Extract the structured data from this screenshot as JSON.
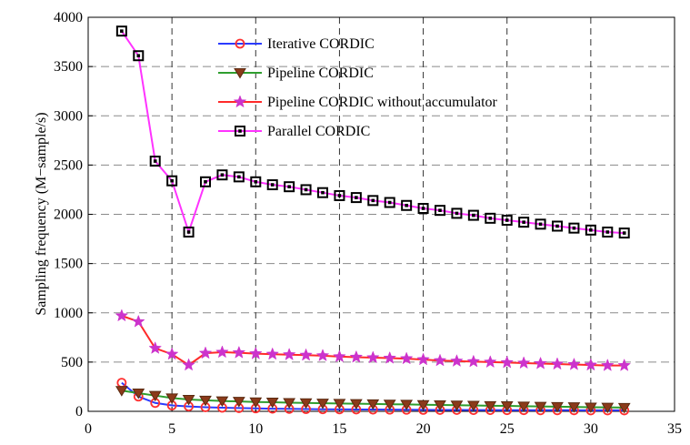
{
  "chart_data": {
    "type": "line",
    "title": "",
    "xlabel": "",
    "ylabel": "Sampling frequency (M−sample/s)",
    "xlim": [
      0,
      35
    ],
    "ylim": [
      0,
      4000
    ],
    "xticks": [
      "0",
      "5",
      "10",
      "15",
      "20",
      "25",
      "30",
      "35"
    ],
    "yticks": [
      "0",
      "500",
      "1000",
      "1500",
      "2000",
      "2500",
      "3000",
      "3500",
      "4000"
    ],
    "grid": "dashed",
    "legend_position": "top-center",
    "x": [
      2,
      3,
      4,
      5,
      6,
      7,
      8,
      9,
      10,
      11,
      12,
      13,
      14,
      15,
      16,
      17,
      18,
      19,
      20,
      21,
      22,
      23,
      24,
      25,
      26,
      27,
      28,
      29,
      30,
      31,
      32
    ],
    "series": [
      {
        "name": "Iterative CORDIC",
        "color": "#2b3bff",
        "marker_color": "#ff3030",
        "marker": "circle",
        "values": [
          290,
          150,
          85,
          60,
          50,
          42,
          37,
          33,
          30,
          27,
          25,
          23,
          21,
          20,
          19,
          18,
          17,
          16,
          15,
          14,
          14,
          13,
          13,
          12,
          12,
          11,
          11,
          11,
          10,
          10,
          10
        ]
      },
      {
        "name": "Pipeline CORDIC",
        "color": "#2e9e2e",
        "marker_color": "#8b3a1a",
        "marker": "triangle-down",
        "values": [
          210,
          185,
          160,
          135,
          120,
          112,
          105,
          100,
          95,
          92,
          88,
          85,
          82,
          80,
          77,
          75,
          72,
          70,
          67,
          65,
          62,
          60,
          57,
          55,
          52,
          50,
          47,
          45,
          42,
          40,
          38
        ]
      },
      {
        "name": "Pipeline CORDIC without accumulator",
        "color": "#ff2a2a",
        "marker_color": "#cc33cc",
        "marker": "star",
        "values": [
          970,
          910,
          640,
          580,
          470,
          590,
          600,
          595,
          585,
          580,
          575,
          570,
          565,
          555,
          550,
          545,
          540,
          535,
          525,
          515,
          510,
          505,
          500,
          495,
          490,
          485,
          480,
          475,
          470,
          465,
          465
        ]
      },
      {
        "name": "Parallel CORDIC",
        "color": "#ff33ff",
        "marker_color": "#000000",
        "marker": "square",
        "values": [
          3860,
          3610,
          2540,
          2340,
          1820,
          2330,
          2400,
          2380,
          2330,
          2300,
          2280,
          2250,
          2220,
          2190,
          2170,
          2140,
          2120,
          2090,
          2060,
          2040,
          2010,
          1990,
          1960,
          1940,
          1920,
          1900,
          1880,
          1860,
          1840,
          1820,
          1810
        ]
      }
    ]
  }
}
